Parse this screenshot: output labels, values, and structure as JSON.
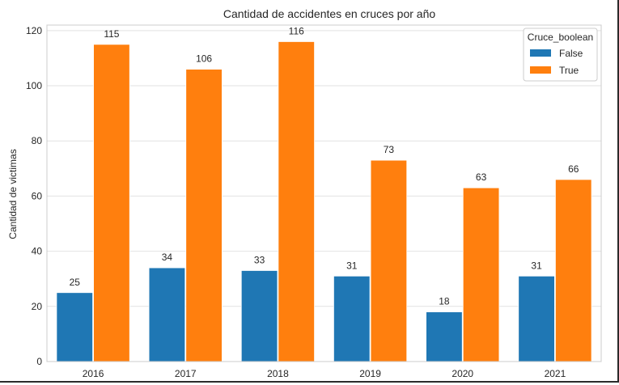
{
  "chart_data": {
    "type": "bar",
    "title": "Cantidad de accidentes en cruces por año",
    "xlabel": "",
    "ylabel": "Cantidad de victimas",
    "categories": [
      "2016",
      "2017",
      "2018",
      "2019",
      "2020",
      "2021"
    ],
    "series": [
      {
        "name": "False",
        "color": "#1f77b4",
        "values": [
          25,
          34,
          33,
          31,
          18,
          31
        ]
      },
      {
        "name": "True",
        "color": "#ff7f0e",
        "values": [
          115,
          106,
          116,
          73,
          63,
          66
        ]
      }
    ],
    "ylim": [
      0,
      122
    ],
    "yticks": [
      "0",
      "20",
      "40",
      "60",
      "80",
      "100",
      "120"
    ],
    "grid": "horizontal",
    "legend": {
      "title": "Cruce_boolean",
      "placement": "top-right"
    },
    "data_labels": true
  }
}
